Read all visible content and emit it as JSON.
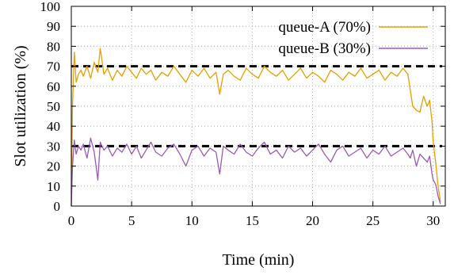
{
  "chart_data": {
    "type": "line",
    "title": "",
    "xlabel": "Time (min)",
    "ylabel": "Slot utilization (%)",
    "xlim": [
      0,
      31
    ],
    "ylim": [
      0,
      100
    ],
    "xticks": [
      0,
      5,
      10,
      15,
      20,
      25,
      30
    ],
    "yticks": [
      0,
      10,
      20,
      30,
      40,
      50,
      60,
      70,
      80,
      90,
      100
    ],
    "grid": true,
    "legend_position": "top-right",
    "series": [
      {
        "name": "queue-A (70%)",
        "color": "#e6a000",
        "x": [
          0,
          0.1,
          0.25,
          0.4,
          0.6,
          0.8,
          1.0,
          1.3,
          1.6,
          1.9,
          2.2,
          2.4,
          2.7,
          3.0,
          3.4,
          3.8,
          4.2,
          4.6,
          5.0,
          5.4,
          5.8,
          6.2,
          6.6,
          7.0,
          7.5,
          8.0,
          8.5,
          9.0,
          9.5,
          10.0,
          10.5,
          11.0,
          11.5,
          12.0,
          12.3,
          12.6,
          13.0,
          13.5,
          14.0,
          14.5,
          15.0,
          15.5,
          16.0,
          16.5,
          17.0,
          17.5,
          18.0,
          18.5,
          19.0,
          19.5,
          20.0,
          20.5,
          21.0,
          21.5,
          22.0,
          22.5,
          23.0,
          23.5,
          24.0,
          24.5,
          25.0,
          25.5,
          26.0,
          26.5,
          27.0,
          27.5,
          27.9,
          28.1,
          28.3,
          28.6,
          28.9,
          29.2,
          29.5,
          29.7,
          29.9,
          30.0,
          30.2,
          30.4,
          30.6
        ],
        "y": [
          0,
          50,
          77,
          62,
          66,
          68,
          65,
          70,
          64,
          72,
          67,
          79,
          66,
          69,
          63,
          68,
          65,
          70,
          67,
          64,
          69,
          66,
          68,
          63,
          67,
          65,
          70,
          66,
          62,
          68,
          65,
          69,
          64,
          67,
          56,
          66,
          68,
          65,
          63,
          69,
          66,
          64,
          70,
          67,
          65,
          68,
          63,
          66,
          69,
          64,
          67,
          65,
          62,
          68,
          66,
          63,
          67,
          65,
          69,
          64,
          66,
          68,
          63,
          67,
          65,
          69,
          66,
          58,
          50,
          48,
          47,
          55,
          50,
          53,
          42,
          32,
          22,
          10,
          2
        ]
      },
      {
        "name": "queue-B (30%)",
        "color": "#9b59b6",
        "x": [
          0,
          0.1,
          0.25,
          0.4,
          0.6,
          0.8,
          1.0,
          1.3,
          1.6,
          1.9,
          2.2,
          2.4,
          2.7,
          3.0,
          3.4,
          3.8,
          4.2,
          4.6,
          5.0,
          5.4,
          5.8,
          6.2,
          6.6,
          7.0,
          7.5,
          8.0,
          8.5,
          9.0,
          9.5,
          10.0,
          10.5,
          11.0,
          11.5,
          12.0,
          12.3,
          12.6,
          13.0,
          13.5,
          14.0,
          14.5,
          15.0,
          15.5,
          16.0,
          16.5,
          17.0,
          17.5,
          18.0,
          18.5,
          19.0,
          19.5,
          20.0,
          20.5,
          21.0,
          21.5,
          22.0,
          22.5,
          23.0,
          23.5,
          24.0,
          24.5,
          25.0,
          25.5,
          26.0,
          26.5,
          27.0,
          27.5,
          27.9,
          28.1,
          28.3,
          28.6,
          28.9,
          29.2,
          29.5,
          29.7,
          29.9,
          30.0,
          30.2,
          30.4,
          30.6
        ],
        "y": [
          0,
          20,
          33,
          26,
          30,
          28,
          31,
          24,
          34,
          27,
          13,
          32,
          28,
          30,
          25,
          29,
          27,
          31,
          26,
          30,
          24,
          28,
          32,
          27,
          25,
          29,
          31,
          26,
          20,
          28,
          30,
          25,
          29,
          27,
          16,
          30,
          28,
          26,
          31,
          27,
          25,
          29,
          32,
          26,
          28,
          24,
          30,
          27,
          29,
          25,
          28,
          31,
          26,
          22,
          28,
          30,
          25,
          27,
          29,
          24,
          28,
          26,
          30,
          25,
          27,
          29,
          26,
          24,
          28,
          20,
          26,
          24,
          22,
          25,
          16,
          13,
          11,
          5,
          1
        ]
      }
    ],
    "reference_lines": [
      {
        "y": 70,
        "style": "dashed",
        "color": "#000000"
      },
      {
        "y": 30,
        "style": "dashed",
        "color": "#000000"
      }
    ]
  }
}
